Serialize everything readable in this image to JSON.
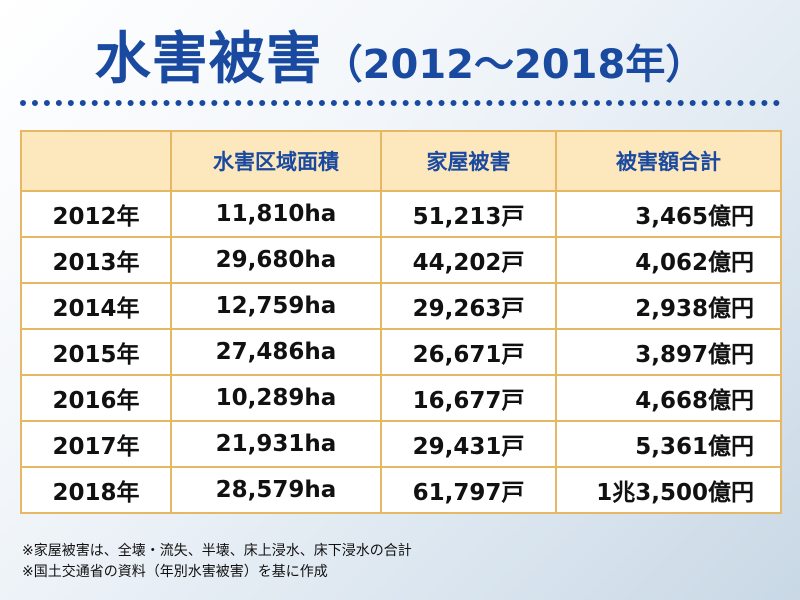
{
  "title": {
    "main": "水害被害",
    "period": "（2012〜2018年）"
  },
  "table": {
    "headers": [
      "",
      "水害区域面積",
      "家屋被害",
      "被害額合計"
    ],
    "rows": [
      {
        "year": "2012年",
        "area": "11,810ha",
        "houses": "51,213戸",
        "amount": "3,465億円"
      },
      {
        "year": "2013年",
        "area": "29,680ha",
        "houses": "44,202戸",
        "amount": "4,062億円"
      },
      {
        "year": "2014年",
        "area": "12,759ha",
        "houses": "29,263戸",
        "amount": "2,938億円"
      },
      {
        "year": "2015年",
        "area": "27,486ha",
        "houses": "26,671戸",
        "amount": "3,897億円"
      },
      {
        "year": "2016年",
        "area": "10,289ha",
        "houses": "16,677戸",
        "amount": "4,668億円"
      },
      {
        "year": "2017年",
        "area": "21,931ha",
        "houses": "29,431戸",
        "amount": "5,361億円"
      },
      {
        "year": "2018年",
        "area": "28,579ha",
        "houses": "61,797戸",
        "amount": "1兆3,500億円"
      }
    ]
  },
  "notes": [
    "※家屋被害は、全壊・流失、半壊、床上浸水、床下浸水の合計",
    "※国土交通省の資料（年別水害被害）を基に作成"
  ],
  "colors": {
    "title": "#1a4aa0",
    "header_bg": "#fde7bd",
    "border": "#e6b863"
  }
}
